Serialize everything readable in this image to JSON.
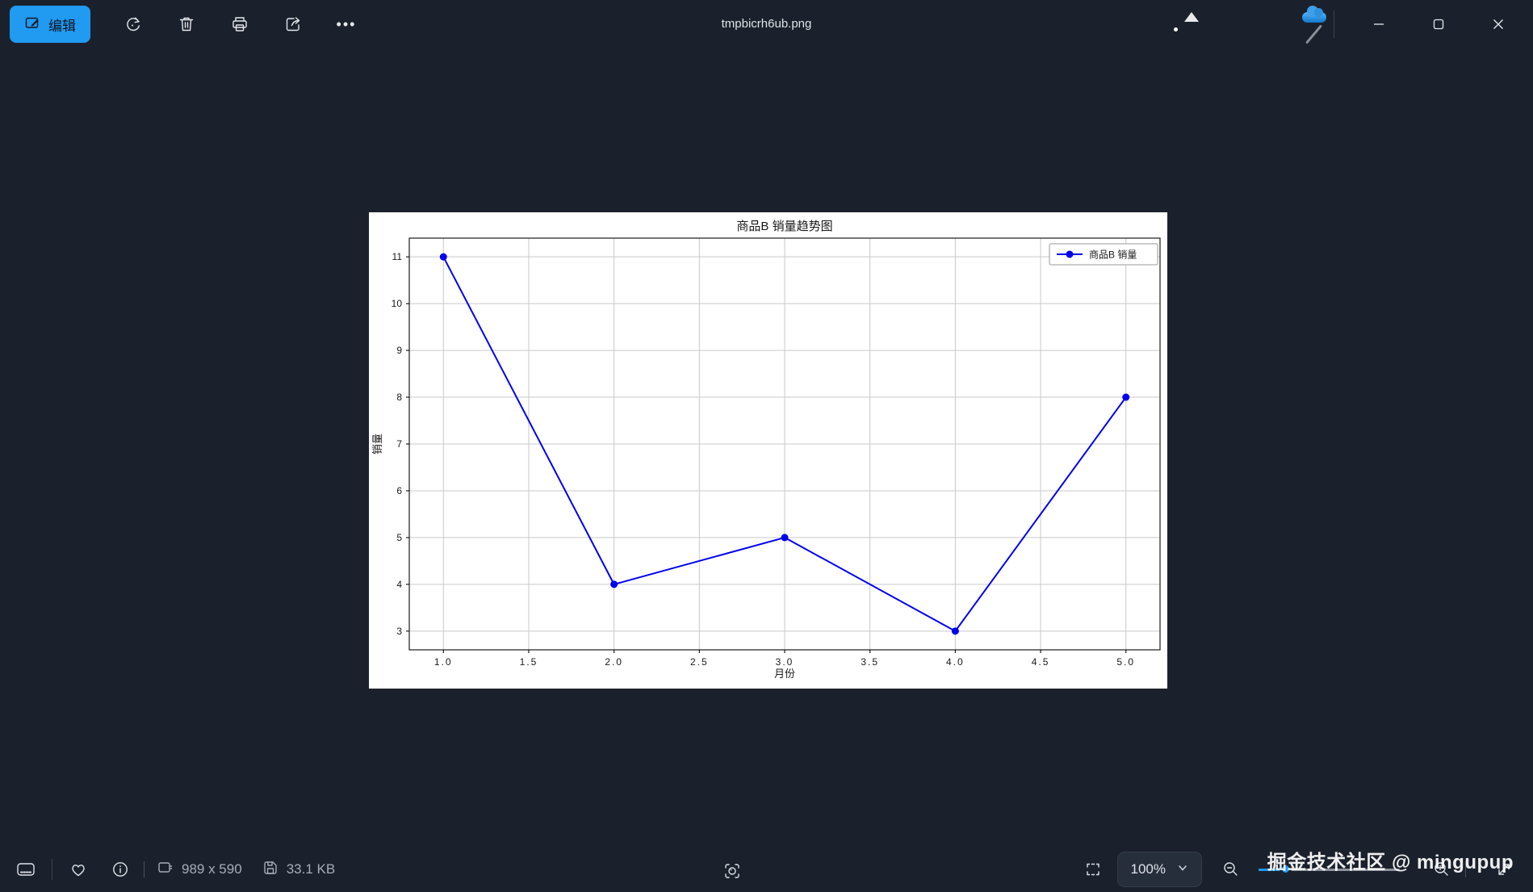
{
  "window": {
    "title": "tmpbicrh6ub.png"
  },
  "colors": {
    "accent": "#219af2",
    "background": "#1b212c",
    "chart_line": "#0000ee"
  },
  "toolbar": {
    "edit_label": "编辑",
    "more_glyph": "•••",
    "icons": [
      "edit-icon",
      "rotate-icon",
      "delete-icon",
      "print-icon",
      "share-icon",
      "more-icon"
    ]
  },
  "titlebar_right_icons": [
    "photos-app-icon",
    "clipchamp-app-icon",
    "onedrive-off-icon",
    "minimize-icon",
    "maximize-icon",
    "close-icon"
  ],
  "statusbar": {
    "dimensions": "989 x 590",
    "file_size": "33.1 KB",
    "zoom_level": "100%",
    "icons": [
      "filmstrip-icon",
      "favorite-icon",
      "info-icon",
      "dimensions-icon",
      "save-icon",
      "visual-search-icon",
      "fit-screen-icon",
      "zoom-out-icon",
      "zoom-in-icon",
      "expand-icon"
    ]
  },
  "watermark": "掘金技术社区 @ mingupup",
  "chart_data": {
    "type": "line",
    "title": "商品B 销量趋势图",
    "xlabel": "月份",
    "ylabel": "销量",
    "x": [
      1,
      2,
      3,
      4,
      5
    ],
    "series": [
      {
        "name": "商品B 销量",
        "values": [
          11,
          4,
          5,
          3,
          8
        ]
      }
    ],
    "xticks": [
      1.0,
      1.5,
      2.0,
      2.5,
      3.0,
      3.5,
      4.0,
      4.5,
      5.0
    ],
    "yticks": [
      3,
      4,
      5,
      6,
      7,
      8,
      9,
      10,
      11
    ],
    "xlim": [
      0.8,
      5.2
    ],
    "ylim": [
      2.6,
      11.4
    ],
    "grid": true,
    "grid_color": "#c9c9c9",
    "line_color": "#0000ee",
    "marker": "o",
    "legend_position": "upper right"
  }
}
